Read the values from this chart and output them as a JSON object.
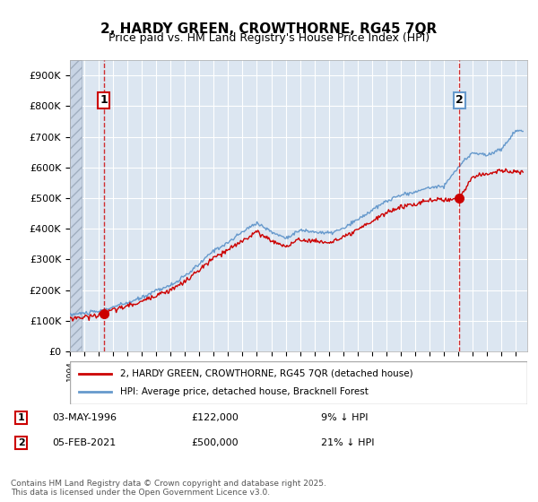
{
  "title": "2, HARDY GREEN, CROWTHORNE, RG45 7QR",
  "subtitle": "Price paid vs. HM Land Registry's House Price Index (HPI)",
  "ylabel": "",
  "ylim": [
    0,
    950000
  ],
  "yticks": [
    0,
    100000,
    200000,
    300000,
    400000,
    500000,
    600000,
    700000,
    800000,
    900000
  ],
  "ytick_labels": [
    "£0",
    "£100K",
    "£200K",
    "£300K",
    "£400K",
    "£500K",
    "£600K",
    "£700K",
    "£800K",
    "£900K"
  ],
  "background_color": "#ffffff",
  "plot_background": "#dce6f1",
  "grid_color": "#ffffff",
  "hatch_color": "#c0c8d8",
  "sale1_date": 1996.34,
  "sale1_price": 122000,
  "sale1_label": "1",
  "sale2_date": 2021.09,
  "sale2_price": 500000,
  "sale2_label": "2",
  "legend_line1": "2, HARDY GREEN, CROWTHORNE, RG45 7QR (detached house)",
  "legend_line2": "HPI: Average price, detached house, Bracknell Forest",
  "annotation1": "1    03-MAY-1996    £122,000    9% ↓ HPI",
  "annotation2": "2    05-FEB-2021    £500,000    21% ↓ HPI",
  "footnote": "Contains HM Land Registry data © Crown copyright and database right 2025.\nThis data is licensed under the Open Government Licence v3.0.",
  "line_red": "#cc0000",
  "line_blue": "#6699cc",
  "title_fontsize": 11,
  "subtitle_fontsize": 9,
  "tick_fontsize": 8
}
